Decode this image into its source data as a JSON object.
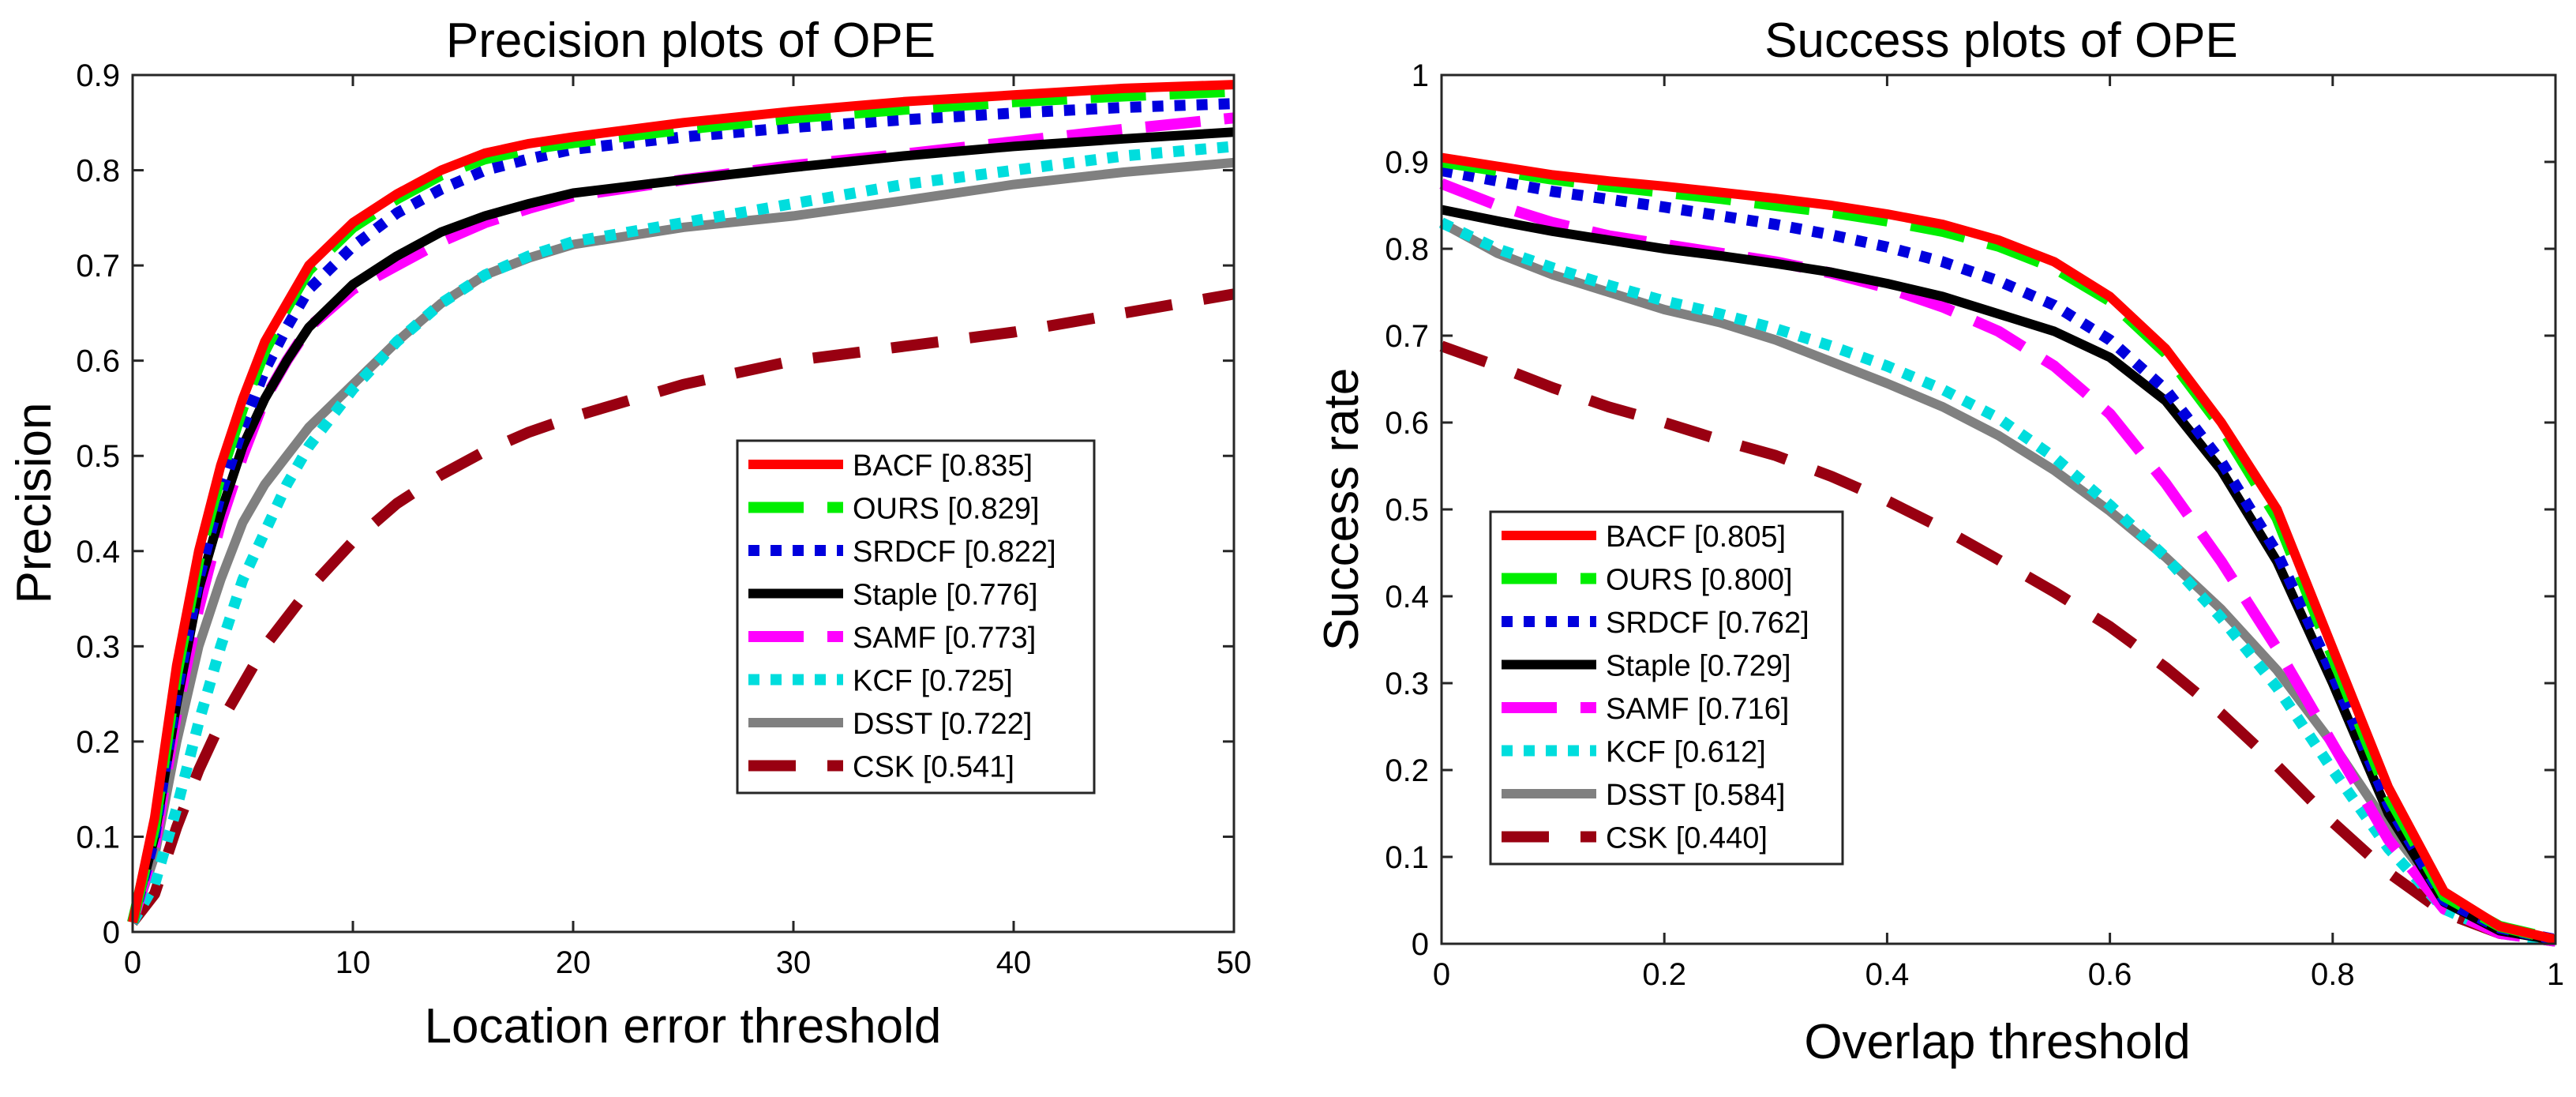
{
  "chart_data": [
    {
      "type": "line",
      "title": "Precision plots of OPE",
      "xlabel": "Location error threshold",
      "ylabel": "Precision",
      "xlim": [
        0,
        50
      ],
      "ylim": [
        0,
        0.9
      ],
      "xticks": [
        0,
        10,
        20,
        30,
        40,
        50
      ],
      "yticks": [
        0,
        0.1,
        0.2,
        0.3,
        0.4,
        0.5,
        0.6,
        0.7,
        0.8,
        0.9
      ],
      "legend_location": "lower-right",
      "x": [
        0,
        1,
        2,
        3,
        4,
        5,
        6,
        7,
        8,
        10,
        12,
        14,
        16,
        18,
        20,
        25,
        30,
        35,
        40,
        45,
        50
      ],
      "series": [
        {
          "name": "BACF [0.835]",
          "color": "#ff0000",
          "style": "solid",
          "values": [
            0.01,
            0.12,
            0.28,
            0.4,
            0.49,
            0.56,
            0.62,
            0.66,
            0.7,
            0.745,
            0.775,
            0.8,
            0.818,
            0.828,
            0.835,
            0.85,
            0.862,
            0.872,
            0.879,
            0.886,
            0.89
          ]
        },
        {
          "name": "OURS [0.829]",
          "color": "#00ee00",
          "style": "dash",
          "values": [
            0.01,
            0.11,
            0.27,
            0.39,
            0.48,
            0.55,
            0.61,
            0.655,
            0.695,
            0.74,
            0.77,
            0.795,
            0.812,
            0.822,
            0.829,
            0.843,
            0.855,
            0.864,
            0.872,
            0.878,
            0.883
          ]
        },
        {
          "name": "SRDCF [0.822]",
          "color": "#0000dd",
          "style": "dot",
          "values": [
            0.01,
            0.1,
            0.25,
            0.37,
            0.46,
            0.53,
            0.59,
            0.635,
            0.675,
            0.72,
            0.755,
            0.78,
            0.8,
            0.812,
            0.822,
            0.835,
            0.845,
            0.853,
            0.86,
            0.866,
            0.87
          ]
        },
        {
          "name": "Staple [0.776]",
          "color": "#000000",
          "style": "solid",
          "values": [
            0.01,
            0.1,
            0.24,
            0.36,
            0.44,
            0.51,
            0.56,
            0.6,
            0.635,
            0.68,
            0.71,
            0.735,
            0.752,
            0.765,
            0.776,
            0.79,
            0.803,
            0.815,
            0.825,
            0.833,
            0.84
          ]
        },
        {
          "name": "SAMF [0.773]",
          "color": "#ff00ff",
          "style": "dash",
          "values": [
            0.01,
            0.09,
            0.23,
            0.34,
            0.43,
            0.5,
            0.56,
            0.6,
            0.635,
            0.675,
            0.7,
            0.725,
            0.745,
            0.76,
            0.773,
            0.79,
            0.805,
            0.817,
            0.83,
            0.843,
            0.855
          ]
        },
        {
          "name": "KCF [0.725]",
          "color": "#00dddd",
          "style": "dot",
          "values": [
            0.01,
            0.05,
            0.13,
            0.22,
            0.3,
            0.37,
            0.42,
            0.47,
            0.51,
            0.57,
            0.62,
            0.66,
            0.69,
            0.71,
            0.725,
            0.745,
            0.765,
            0.785,
            0.8,
            0.815,
            0.825
          ]
        },
        {
          "name": "DSST [0.722]",
          "color": "#808080",
          "style": "solid",
          "values": [
            0.01,
            0.08,
            0.2,
            0.3,
            0.37,
            0.43,
            0.47,
            0.5,
            0.53,
            0.575,
            0.62,
            0.66,
            0.69,
            0.708,
            0.722,
            0.74,
            0.752,
            0.768,
            0.785,
            0.798,
            0.808
          ]
        },
        {
          "name": "CSK [0.541]",
          "color": "#990011",
          "style": "longdash",
          "values": [
            0.01,
            0.04,
            0.11,
            0.17,
            0.22,
            0.26,
            0.3,
            0.33,
            0.36,
            0.41,
            0.45,
            0.48,
            0.505,
            0.525,
            0.541,
            0.575,
            0.6,
            0.615,
            0.63,
            0.65,
            0.67
          ]
        }
      ]
    },
    {
      "type": "line",
      "title": "Success plots of OPE",
      "xlabel": "Overlap threshold",
      "ylabel": "Success rate",
      "xlim": [
        0,
        1
      ],
      "ylim": [
        0,
        1
      ],
      "xticks": [
        0,
        0.2,
        0.4,
        0.6,
        0.8,
        1
      ],
      "yticks": [
        0,
        0.1,
        0.2,
        0.3,
        0.4,
        0.5,
        0.6,
        0.7,
        0.8,
        0.9,
        1
      ],
      "legend_location": "lower-left",
      "x": [
        0,
        0.05,
        0.1,
        0.15,
        0.2,
        0.25,
        0.3,
        0.35,
        0.4,
        0.45,
        0.5,
        0.55,
        0.6,
        0.65,
        0.7,
        0.75,
        0.8,
        0.85,
        0.9,
        0.95,
        1.0
      ],
      "series": [
        {
          "name": "BACF [0.805]",
          "color": "#ff0000",
          "style": "solid",
          "values": [
            0.905,
            0.895,
            0.885,
            0.878,
            0.872,
            0.865,
            0.858,
            0.85,
            0.84,
            0.828,
            0.81,
            0.785,
            0.745,
            0.685,
            0.6,
            0.5,
            0.34,
            0.18,
            0.06,
            0.02,
            0.005
          ]
        },
        {
          "name": "OURS [0.800]",
          "color": "#00ee00",
          "style": "dash",
          "values": [
            0.9,
            0.89,
            0.88,
            0.872,
            0.865,
            0.858,
            0.85,
            0.842,
            0.832,
            0.82,
            0.803,
            0.778,
            0.74,
            0.68,
            0.595,
            0.49,
            0.33,
            0.17,
            0.055,
            0.02,
            0.005
          ]
        },
        {
          "name": "SRDCF [0.762]",
          "color": "#0000dd",
          "style": "dot",
          "values": [
            0.89,
            0.878,
            0.866,
            0.857,
            0.848,
            0.838,
            0.828,
            0.816,
            0.802,
            0.785,
            0.763,
            0.735,
            0.695,
            0.638,
            0.555,
            0.45,
            0.31,
            0.16,
            0.05,
            0.018,
            0.005
          ]
        },
        {
          "name": "Staple [0.729]",
          "color": "#000000",
          "style": "solid",
          "values": [
            0.845,
            0.832,
            0.82,
            0.81,
            0.8,
            0.792,
            0.783,
            0.773,
            0.76,
            0.745,
            0.725,
            0.705,
            0.675,
            0.625,
            0.545,
            0.44,
            0.3,
            0.15,
            0.048,
            0.015,
            0.004
          ]
        },
        {
          "name": "SAMF [0.716]",
          "color": "#ff00ff",
          "style": "dash",
          "values": [
            0.875,
            0.85,
            0.83,
            0.815,
            0.805,
            0.795,
            0.785,
            0.772,
            0.755,
            0.733,
            0.705,
            0.665,
            0.61,
            0.53,
            0.44,
            0.34,
            0.23,
            0.12,
            0.04,
            0.012,
            0.003
          ]
        },
        {
          "name": "KCF [0.612]",
          "color": "#00dddd",
          "style": "dot",
          "values": [
            0.83,
            0.8,
            0.778,
            0.758,
            0.74,
            0.725,
            0.708,
            0.688,
            0.665,
            0.638,
            0.605,
            0.56,
            0.505,
            0.445,
            0.375,
            0.295,
            0.2,
            0.11,
            0.04,
            0.012,
            0.003
          ]
        },
        {
          "name": "DSST [0.584]",
          "color": "#808080",
          "style": "solid",
          "values": [
            0.83,
            0.795,
            0.77,
            0.75,
            0.73,
            0.715,
            0.695,
            0.67,
            0.645,
            0.618,
            0.585,
            0.545,
            0.498,
            0.445,
            0.385,
            0.315,
            0.23,
            0.135,
            0.052,
            0.015,
            0.004
          ]
        },
        {
          "name": "CSK [0.440]",
          "color": "#990011",
          "style": "longdash",
          "values": [
            0.688,
            0.665,
            0.64,
            0.618,
            0.6,
            0.58,
            0.562,
            0.538,
            0.51,
            0.478,
            0.442,
            0.405,
            0.365,
            0.318,
            0.265,
            0.205,
            0.14,
            0.082,
            0.036,
            0.012,
            0.003
          ]
        }
      ]
    }
  ]
}
